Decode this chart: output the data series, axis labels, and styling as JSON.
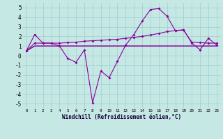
{
  "background_color": "#c5e8e5",
  "grid_color": "#9ecece",
  "line_color": "#880099",
  "xlabel": "Windchill (Refroidissement éolien,°C)",
  "xlim": [
    -0.5,
    23.5
  ],
  "ylim": [
    -5.5,
    5.5
  ],
  "xticks": [
    0,
    1,
    2,
    3,
    4,
    5,
    6,
    7,
    8,
    9,
    10,
    11,
    12,
    13,
    14,
    15,
    16,
    17,
    18,
    19,
    20,
    21,
    22,
    23
  ],
  "yticks": [
    -5,
    -4,
    -3,
    -2,
    -1,
    0,
    1,
    2,
    3,
    4,
    5
  ],
  "line1_x": [
    0,
    1,
    2,
    3,
    4,
    5,
    6,
    7,
    8,
    9,
    10,
    11,
    12,
    13,
    14,
    15,
    16,
    17,
    18,
    19,
    20,
    21,
    22,
    23
  ],
  "line1_y": [
    0.5,
    2.2,
    1.3,
    1.3,
    1.0,
    -0.3,
    -0.7,
    0.6,
    -4.9,
    -1.6,
    -2.3,
    -0.6,
    1.1,
    2.2,
    3.6,
    4.8,
    4.9,
    4.1,
    2.6,
    2.7,
    1.3,
    0.6,
    1.8,
    1.1
  ],
  "line2_x": [
    0,
    1,
    2,
    3,
    4,
    5,
    6,
    7,
    8,
    9,
    10,
    11,
    12,
    13,
    14,
    15,
    16,
    17,
    18,
    19,
    20,
    21,
    22,
    23
  ],
  "line2_y": [
    0.5,
    1.3,
    1.3,
    1.3,
    1.3,
    1.35,
    1.4,
    1.5,
    1.55,
    1.6,
    1.65,
    1.7,
    1.8,
    1.9,
    2.0,
    2.15,
    2.3,
    2.5,
    2.6,
    2.65,
    1.4,
    1.35,
    1.3,
    1.3
  ],
  "line3_x": [
    0,
    1,
    2,
    3,
    4,
    5,
    6,
    7,
    8,
    9,
    10,
    11,
    12,
    13,
    14,
    15,
    16,
    17,
    18,
    19,
    20,
    21,
    22,
    23
  ],
  "line3_y": [
    0.5,
    1.0,
    1.0,
    1.0,
    1.0,
    1.0,
    1.0,
    1.0,
    1.0,
    1.0,
    1.0,
    1.0,
    1.0,
    1.0,
    1.0,
    1.0,
    1.0,
    1.0,
    1.0,
    1.0,
    1.0,
    1.0,
    1.0,
    1.0
  ],
  "xlabel_fontsize": 5.5,
  "tick_fontsize_x": 4.2,
  "tick_fontsize_y": 5.5,
  "linewidth": 0.8,
  "markersize": 2.0
}
